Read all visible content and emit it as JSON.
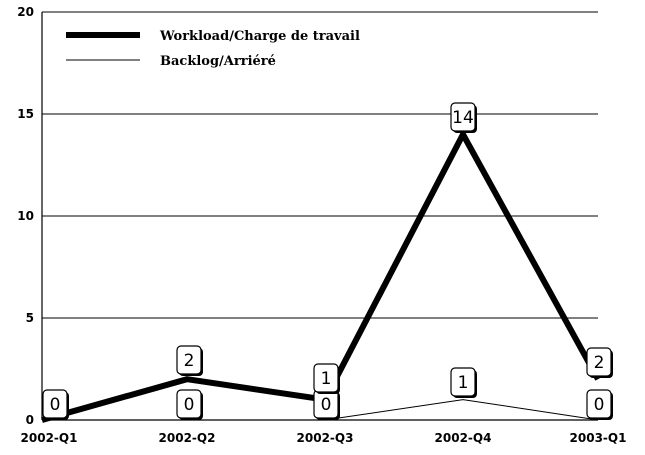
{
  "chart_data": {
    "type": "line",
    "categories": [
      "2002-Q1",
      "2002-Q2",
      "2002-Q3",
      "2002-Q4",
      "2003-Q1"
    ],
    "series": [
      {
        "name": "Workload/Charge de travail",
        "values": [
          0,
          2,
          1,
          14,
          2
        ],
        "color": "#000000",
        "style": "thick"
      },
      {
        "name": "Backlog/Arriéré",
        "values": [
          0,
          0,
          0,
          1,
          0
        ],
        "color": "#000000",
        "style": "thin"
      }
    ],
    "y_ticks": [
      "0",
      "5",
      "10",
      "15",
      "20"
    ],
    "ylim": [
      0,
      20
    ],
    "grid": true,
    "legend_position": "top-left",
    "title": "",
    "xlabel": "",
    "ylabel": ""
  }
}
